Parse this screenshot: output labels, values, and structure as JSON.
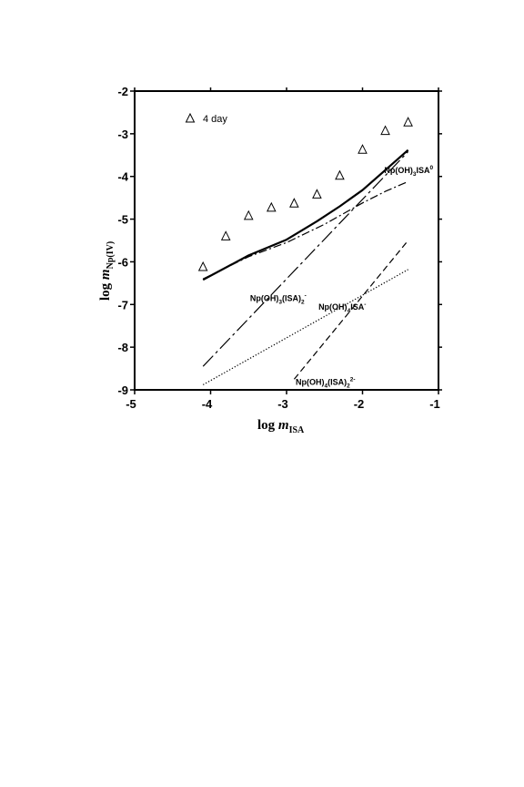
{
  "chart_data": {
    "type": "line",
    "xlabel": {
      "main": "log ",
      "var": "m",
      "sub": "ISA"
    },
    "ylabel": {
      "main": "log ",
      "var": "m",
      "sub": "Np(IV)"
    },
    "xlim": [
      -5,
      -1
    ],
    "ylim": [
      -9,
      -2
    ],
    "x_ticks": [
      -5,
      -4,
      -3,
      -2,
      -1
    ],
    "y_ticks": [
      -2,
      -3,
      -4,
      -5,
      -6,
      -7,
      -8,
      -9
    ],
    "grid": false,
    "legend": {
      "position": "top-left",
      "entries": [
        {
          "marker": "triangle",
          "label": "4 day"
        }
      ]
    },
    "points": [
      {
        "x": -4.1,
        "y": -6.12
      },
      {
        "x": -3.8,
        "y": -5.4
      },
      {
        "x": -3.5,
        "y": -4.92
      },
      {
        "x": -3.2,
        "y": -4.73
      },
      {
        "x": -2.9,
        "y": -4.63
      },
      {
        "x": -2.6,
        "y": -4.42
      },
      {
        "x": -2.3,
        "y": -3.98
      },
      {
        "x": -2.0,
        "y": -3.37
      },
      {
        "x": -1.7,
        "y": -2.93
      },
      {
        "x": -1.4,
        "y": -2.73
      }
    ],
    "series": [
      {
        "style": "solid",
        "x": [
          -4.1,
          -3.5,
          -3.0,
          -2.6,
          -2.3,
          -2.0,
          -1.7,
          -1.4
        ],
        "y": [
          -6.42,
          -5.85,
          -5.48,
          -5.05,
          -4.7,
          -4.32,
          -3.85,
          -3.38
        ]
      },
      {
        "style": "dashdot",
        "x": [
          -4.1,
          -3.5,
          -3.0,
          -2.5,
          -2.0,
          -1.7,
          -1.4
        ],
        "y": [
          -6.4,
          -5.88,
          -5.55,
          -5.12,
          -4.62,
          -4.35,
          -4.12
        ]
      },
      {
        "style": "longdash",
        "x": [
          -4.1,
          -1.4
        ],
        "y": [
          -8.45,
          -3.42
        ]
      },
      {
        "style": "dotted",
        "x": [
          -4.1,
          -1.4
        ],
        "y": [
          -8.88,
          -6.18
        ]
      },
      {
        "style": "dashed",
        "x": [
          -2.9,
          -1.4
        ],
        "y": [
          -8.75,
          -5.5
        ]
      }
    ],
    "annotations": [
      {
        "parts": [
          "Np(OH)",
          "3",
          "ISA",
          "0"
        ],
        "kinds": [
          "t",
          "sub",
          "t",
          "sup"
        ],
        "x": -1.07,
        "y": -3.92
      },
      {
        "parts": [
          "Np(OH)",
          "3",
          "(ISA)",
          "2",
          "-"
        ],
        "kinds": [
          "t",
          "sub",
          "t",
          "sub",
          "sup"
        ],
        "x": -3.48,
        "y": -6.92
      },
      {
        "parts": [
          "Np(OH)",
          "4",
          "ISA",
          "-"
        ],
        "kinds": [
          "t",
          "sub",
          "t",
          "sup"
        ],
        "x": -2.58,
        "y": -7.12
      },
      {
        "parts": [
          "Np(OH)",
          "4",
          "(ISA)",
          "2",
          "2-"
        ],
        "kinds": [
          "t",
          "sub",
          "t",
          "sub",
          "sup"
        ],
        "x": -2.88,
        "y": -8.88
      }
    ]
  }
}
